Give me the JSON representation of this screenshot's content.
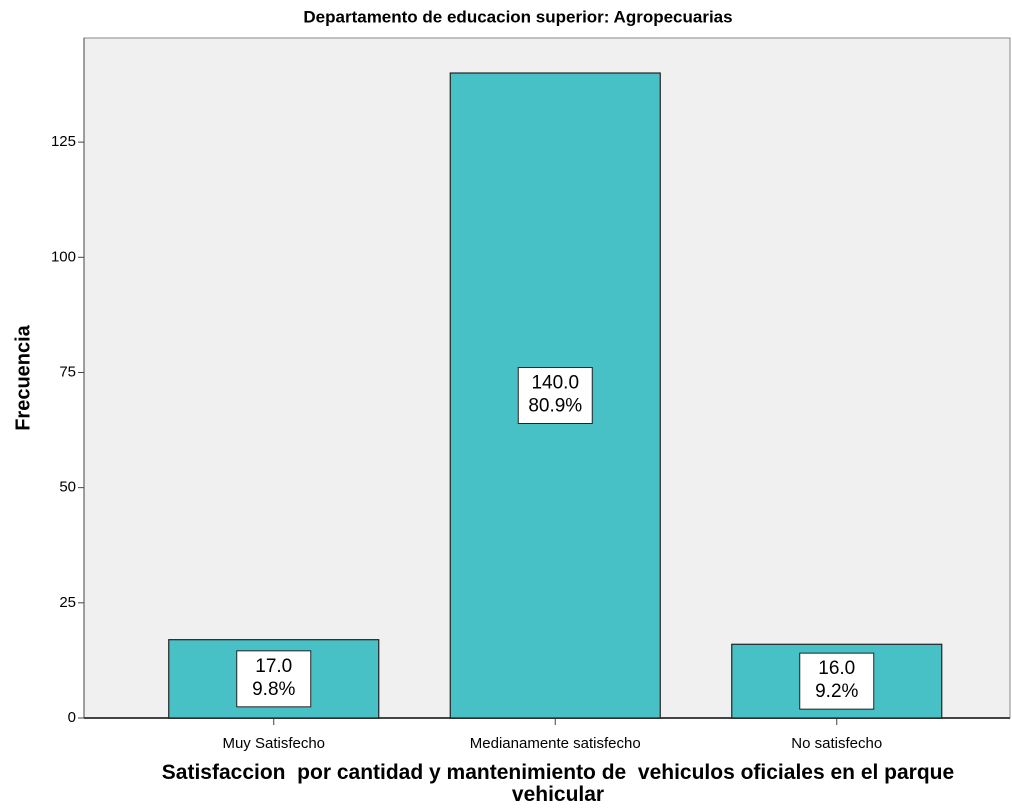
{
  "chart_data": {
    "type": "bar",
    "title": "Departamento de educacion superior: Agropecuarias",
    "xlabel": "Satisfaccion  por cantidad y mantenimiento de  vehiculos oficiales en el parque vehicular",
    "ylabel": "Frecuencia",
    "categories": [
      "Muy Satisfecho",
      "Medianamente satisfecho",
      "No satisfecho"
    ],
    "values": [
      17,
      140,
      16
    ],
    "value_labels": [
      "17.0",
      "140.0",
      "16.0"
    ],
    "percent_labels": [
      "9.8%",
      "80.9%",
      "9.2%"
    ],
    "color": "#48c1c6",
    "ylim": [
      0,
      147.6
    ],
    "yticks": [
      0,
      25,
      50,
      75,
      100,
      125
    ]
  }
}
